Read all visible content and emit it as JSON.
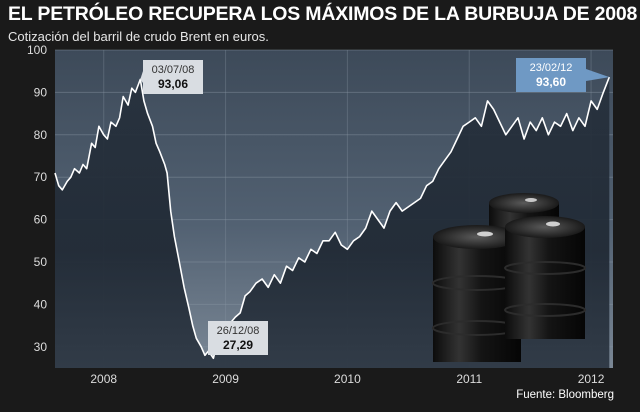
{
  "chart_data": {
    "type": "area",
    "title": "EL PETRÓLEO RECUPERA LOS MÁXIMOS DE LA BURBUJA DE 2008",
    "subtitle": "Cotización del barril de crudo Brent en euros.",
    "source": "Fuente: Bloomberg",
    "ylim": [
      25,
      100
    ],
    "yticks": [
      30,
      40,
      50,
      60,
      70,
      80,
      90,
      100
    ],
    "xlim": [
      2007.6,
      2012.18
    ],
    "xticks": [
      {
        "label": "2008",
        "x": 2008.0
      },
      {
        "label": "2009",
        "x": 2009.0
      },
      {
        "label": "2010",
        "x": 2010.0
      },
      {
        "label": "2011",
        "x": 2011.0
      },
      {
        "label": "2012",
        "x": 2012.0
      }
    ],
    "grid": true,
    "series": [
      {
        "x": [
          2007.6,
          2007.63,
          2007.66,
          2007.7,
          2007.73,
          2007.76,
          2007.8,
          2007.83,
          2007.86,
          2007.9,
          2007.93,
          2007.96,
          2008.0,
          2008.03,
          2008.06,
          2008.1,
          2008.13,
          2008.16,
          2008.2,
          2008.23,
          2008.26,
          2008.3,
          2008.33,
          2008.36,
          2008.4,
          2008.43,
          2008.46,
          2008.5,
          2008.52,
          2008.55,
          2008.58,
          2008.62,
          2008.66,
          2008.7,
          2008.73,
          2008.76,
          2008.8,
          2008.83,
          2008.86,
          2008.9,
          2008.93,
          2008.96,
          2008.98,
          2009.02,
          2009.05,
          2009.08,
          2009.12,
          2009.16,
          2009.2,
          2009.25,
          2009.3,
          2009.35,
          2009.4,
          2009.45,
          2009.5,
          2009.55,
          2009.6,
          2009.65,
          2009.7,
          2009.75,
          2009.8,
          2009.85,
          2009.9,
          2009.95,
          2010.0,
          2010.05,
          2010.1,
          2010.15,
          2010.2,
          2010.25,
          2010.3,
          2010.35,
          2010.4,
          2010.45,
          2010.5,
          2010.55,
          2010.6,
          2010.65,
          2010.7,
          2010.75,
          2010.8,
          2010.85,
          2010.9,
          2010.95,
          2011.0,
          2011.05,
          2011.1,
          2011.15,
          2011.2,
          2011.25,
          2011.3,
          2011.35,
          2011.4,
          2011.45,
          2011.5,
          2011.55,
          2011.6,
          2011.65,
          2011.7,
          2011.75,
          2011.8,
          2011.85,
          2011.9,
          2011.95,
          2012.0,
          2012.05,
          2012.1,
          2012.15
        ],
        "y": [
          71,
          68,
          67,
          69,
          70,
          72,
          71,
          73,
          72,
          78,
          77,
          82,
          80,
          79,
          83,
          82,
          84,
          89,
          87,
          91,
          90,
          93.06,
          88,
          85,
          82,
          78,
          76,
          73,
          71,
          62,
          56,
          50,
          44,
          39,
          35,
          32,
          30,
          28,
          29,
          27.29,
          31,
          30,
          32,
          34,
          36,
          37,
          38,
          42,
          43,
          45,
          46,
          44,
          47,
          45,
          49,
          48,
          51,
          50,
          53,
          52,
          55,
          55,
          57,
          54,
          53,
          55,
          56,
          58,
          62,
          60,
          58,
          62,
          64,
          62,
          63,
          64,
          65,
          68,
          69,
          72,
          74,
          76,
          79,
          82,
          83,
          84,
          82,
          88,
          86,
          83,
          80,
          82,
          84,
          79,
          83,
          81,
          84,
          80,
          83,
          82,
          85,
          81,
          84,
          82,
          88,
          86,
          90,
          93.6
        ]
      }
    ],
    "annotations": [
      {
        "date": "03/07/08",
        "value": "93,06",
        "x": 2008.3,
        "y": 93.06
      },
      {
        "date": "26/12/08",
        "value": "27,29",
        "x": 2008.9,
        "y": 27.29
      },
      {
        "date": "23/02/12",
        "value": "93,60",
        "x": 2012.15,
        "y": 93.6
      }
    ]
  }
}
